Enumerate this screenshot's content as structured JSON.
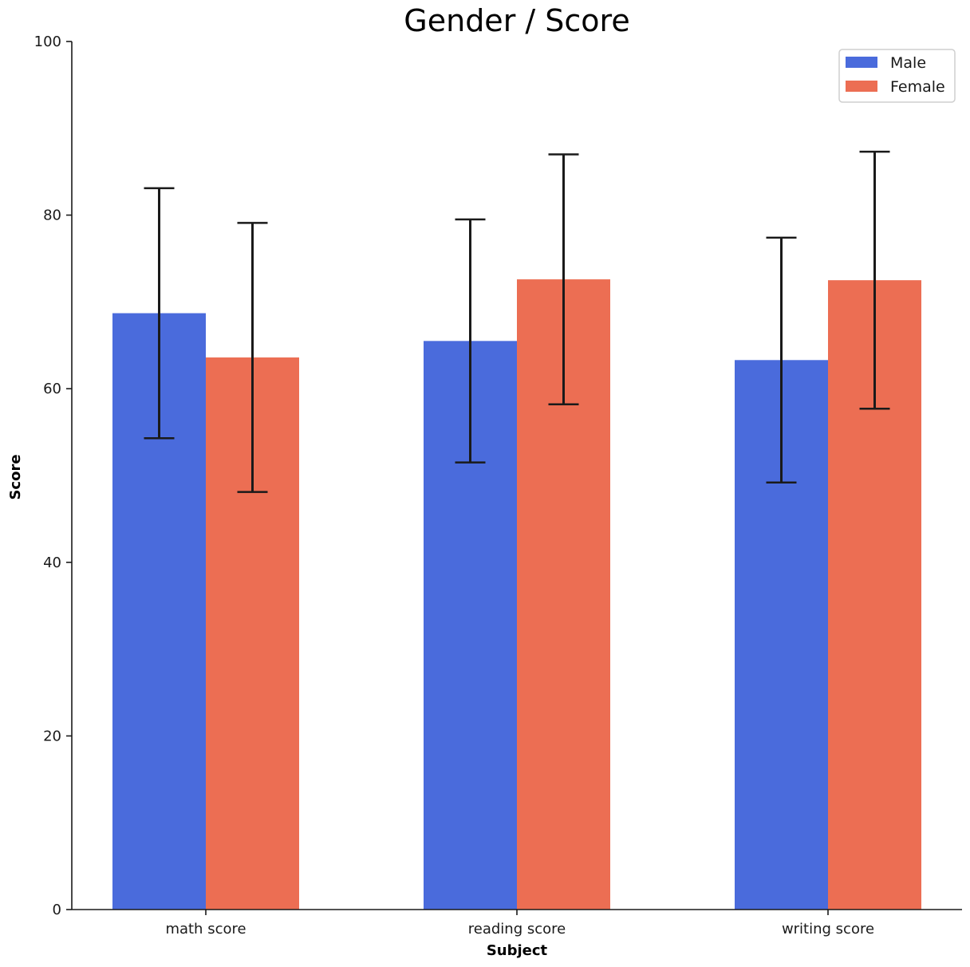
{
  "chart_data": {
    "type": "bar",
    "title": "Gender / Score",
    "xlabel": "Subject",
    "ylabel": "Score",
    "categories": [
      "math score",
      "reading score",
      "writing score"
    ],
    "ylim": [
      0,
      100
    ],
    "yticks": [
      0,
      20,
      40,
      60,
      80,
      100
    ],
    "grid": false,
    "legend_position": "top-right",
    "series": [
      {
        "name": "Male",
        "color": "#4a6bdc",
        "values": [
          68.7,
          65.5,
          63.3
        ],
        "error": [
          14.4,
          14.0,
          14.1
        ]
      },
      {
        "name": "Female",
        "color": "#ec6e53",
        "values": [
          63.6,
          72.6,
          72.5
        ],
        "error": [
          15.5,
          14.4,
          14.8
        ]
      }
    ]
  }
}
